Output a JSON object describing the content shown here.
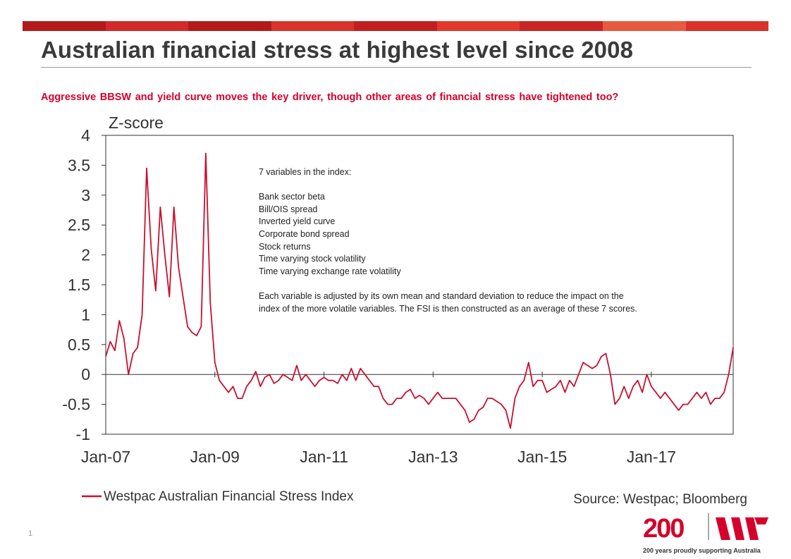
{
  "title": "Australian financial stress at highest level since 2008",
  "subtitle": "Aggressive BBSW and yield curve moves the key driver, though other areas of financial stress have tightened too?",
  "top_bar_colors": [
    "#b31b1b",
    "#d12a2a",
    "#b31b1b",
    "#d8342c",
    "#c0201f",
    "#e1392d",
    "#c82525",
    "#e85a3f",
    "#d9322b"
  ],
  "source": "Source: Westpac; Bloomberg",
  "page_number": "1",
  "logo": {
    "number": "200",
    "tagline": "200 years proudly supporting Australia",
    "icon": "westpac-w-icon",
    "color": "#d5002b"
  },
  "annotation": {
    "heading": "7 variables in the index:",
    "variables": [
      "Bank sector beta",
      "Bill/OIS spread",
      "Inverted yield curve",
      "Corporate bond spread",
      "Stock returns",
      "Time varying stock volatility",
      "Time varying exchange rate volatility"
    ],
    "note": [
      "Each variable is adjusted by its own mean and standard deviation to reduce the impact on the",
      "index of the more volatile variables. The FSI is then constructed as an average of these 7 scores."
    ]
  },
  "chart_data": {
    "type": "line",
    "ylabel": "Z-score",
    "ylim": [
      -1,
      4
    ],
    "yticks": [
      4,
      3.5,
      3,
      2.5,
      2,
      1.5,
      1,
      0.5,
      0,
      -0.5,
      -1
    ],
    "ytick_labels": [
      "4",
      "3.5",
      "3",
      "2.5",
      "2",
      "1.5",
      "1",
      "0.5",
      "0",
      "-0.5",
      "-1"
    ],
    "xlim": [
      "2007-01",
      "2018-07"
    ],
    "xticks": [
      "2007-01",
      "2009-01",
      "2011-01",
      "2013-01",
      "2015-01",
      "2017-01"
    ],
    "xtick_labels": [
      "Jan-07",
      "Jan-09",
      "Jan-11",
      "Jan-13",
      "Jan-15",
      "Jan-17"
    ],
    "grid": false,
    "legend": "bottom-left",
    "series": [
      {
        "name": "Westpac Australian Financial Stress Index",
        "color": "#c8102e",
        "x": [
          "2007-01",
          "2007-02",
          "2007-03",
          "2007-04",
          "2007-05",
          "2007-06",
          "2007-07",
          "2007-08",
          "2007-09",
          "2007-10",
          "2007-11",
          "2007-12",
          "2008-01",
          "2008-02",
          "2008-03",
          "2008-04",
          "2008-05",
          "2008-06",
          "2008-07",
          "2008-08",
          "2008-09",
          "2008-10",
          "2008-11",
          "2008-12",
          "2009-01",
          "2009-02",
          "2009-03",
          "2009-04",
          "2009-05",
          "2009-06",
          "2009-07",
          "2009-08",
          "2009-09",
          "2009-10",
          "2009-11",
          "2009-12",
          "2010-01",
          "2010-02",
          "2010-03",
          "2010-04",
          "2010-05",
          "2010-06",
          "2010-07",
          "2010-08",
          "2010-09",
          "2010-10",
          "2010-11",
          "2010-12",
          "2011-01",
          "2011-02",
          "2011-03",
          "2011-04",
          "2011-05",
          "2011-06",
          "2011-07",
          "2011-08",
          "2011-09",
          "2011-10",
          "2011-11",
          "2011-12",
          "2012-01",
          "2012-02",
          "2012-03",
          "2012-04",
          "2012-05",
          "2012-06",
          "2012-07",
          "2012-08",
          "2012-09",
          "2012-10",
          "2012-11",
          "2012-12",
          "2013-01",
          "2013-02",
          "2013-03",
          "2013-04",
          "2013-05",
          "2013-06",
          "2013-07",
          "2013-08",
          "2013-09",
          "2013-10",
          "2013-11",
          "2013-12",
          "2014-01",
          "2014-02",
          "2014-03",
          "2014-04",
          "2014-05",
          "2014-06",
          "2014-07",
          "2014-08",
          "2014-09",
          "2014-10",
          "2014-11",
          "2014-12",
          "2015-01",
          "2015-02",
          "2015-03",
          "2015-04",
          "2015-05",
          "2015-06",
          "2015-07",
          "2015-08",
          "2015-09",
          "2015-10",
          "2015-11",
          "2015-12",
          "2016-01",
          "2016-02",
          "2016-03",
          "2016-04",
          "2016-05",
          "2016-06",
          "2016-07",
          "2016-08",
          "2016-09",
          "2016-10",
          "2016-11",
          "2016-12",
          "2017-01",
          "2017-02",
          "2017-03",
          "2017-04",
          "2017-05",
          "2017-06",
          "2017-07",
          "2017-08",
          "2017-09",
          "2017-10",
          "2017-11",
          "2017-12",
          "2018-01",
          "2018-02",
          "2018-03",
          "2018-04",
          "2018-05",
          "2018-06",
          "2018-07"
        ],
        "values": [
          0.3,
          0.55,
          0.4,
          0.9,
          0.6,
          0.0,
          0.35,
          0.45,
          1.0,
          3.45,
          2.1,
          1.4,
          2.8,
          2.0,
          1.3,
          2.8,
          1.8,
          1.3,
          0.8,
          0.7,
          0.65,
          0.8,
          3.7,
          1.2,
          0.2,
          -0.1,
          -0.2,
          -0.3,
          -0.2,
          -0.4,
          -0.4,
          -0.2,
          -0.1,
          0.05,
          -0.2,
          -0.05,
          0.0,
          -0.15,
          -0.1,
          0.0,
          -0.05,
          -0.1,
          0.15,
          -0.1,
          0.0,
          -0.1,
          -0.2,
          -0.1,
          -0.05,
          -0.1,
          -0.1,
          -0.15,
          0.0,
          -0.1,
          0.1,
          -0.1,
          0.1,
          0.0,
          -0.1,
          -0.2,
          -0.2,
          -0.4,
          -0.5,
          -0.5,
          -0.4,
          -0.4,
          -0.3,
          -0.25,
          -0.4,
          -0.35,
          -0.4,
          -0.5,
          -0.4,
          -0.3,
          -0.4,
          -0.4,
          -0.4,
          -0.4,
          -0.5,
          -0.6,
          -0.8,
          -0.75,
          -0.6,
          -0.55,
          -0.4,
          -0.4,
          -0.45,
          -0.5,
          -0.6,
          -0.9,
          -0.4,
          -0.2,
          -0.1,
          0.2,
          -0.2,
          -0.1,
          -0.1,
          -0.3,
          -0.25,
          -0.2,
          -0.1,
          -0.3,
          -0.1,
          -0.2,
          0.0,
          0.2,
          0.15,
          0.1,
          0.15,
          0.3,
          0.35,
          0.0,
          -0.5,
          -0.4,
          -0.2,
          -0.4,
          -0.2,
          -0.1,
          -0.3,
          0.0,
          -0.2,
          -0.3,
          -0.4,
          -0.3,
          -0.4,
          -0.5,
          -0.6,
          -0.5,
          -0.5,
          -0.4,
          -0.3,
          -0.4,
          -0.3,
          -0.5,
          -0.4,
          -0.4,
          -0.3,
          0.0,
          0.45
        ]
      }
    ]
  }
}
